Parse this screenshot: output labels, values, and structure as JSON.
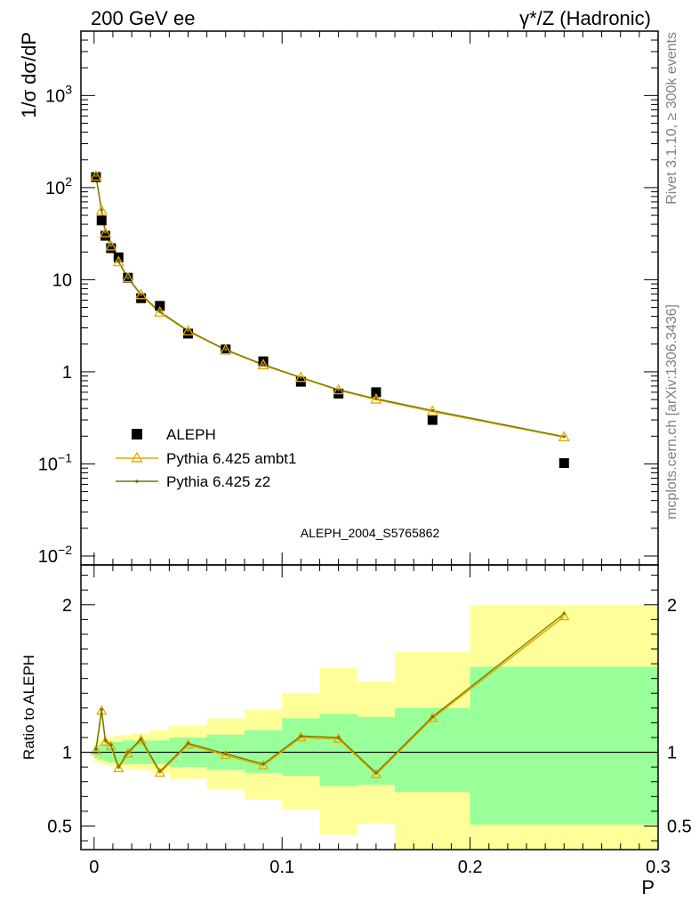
{
  "header": {
    "energy_label": "200 GeV ee",
    "process_label": "γ*/Z (Hadronic)"
  },
  "side_labels": {
    "rivet": "Rivet 3.1.10, ≥ 300k events",
    "mcplots": "mcplots.cern.ch [arXiv:1306.3436]"
  },
  "colors": {
    "data": "#000000",
    "ambt1": "#e8a800",
    "z2": "#6b7a00",
    "band_inner": "#99ff99",
    "band_outer": "#ffff99",
    "analysis_text": "#a0a0a0"
  },
  "chart_data": [
    {
      "type": "scatter",
      "ylabel": "1/σ dσ/dP",
      "yscale": "log",
      "ylim": [
        0.008,
        5000
      ],
      "xlim": [
        -0.007,
        0.3
      ],
      "yticks": [
        {
          "v": 0.01,
          "base": "10",
          "exp": "−2"
        },
        {
          "v": 0.1,
          "base": "10",
          "exp": "−1"
        },
        {
          "v": 1,
          "base": "1",
          "exp": ""
        },
        {
          "v": 10,
          "base": "10",
          "exp": ""
        },
        {
          "v": 100,
          "base": "10",
          "exp": "2"
        },
        {
          "v": 1000,
          "base": "10",
          "exp": "3"
        }
      ],
      "annotation": "ALEPH_2004_S5765862",
      "legend": {
        "placement": "lower-left",
        "entries": [
          {
            "label": "ALEPH"
          },
          {
            "label": "Pythia 6.425 ambt1"
          },
          {
            "label": "Pythia 6.425 z2"
          }
        ]
      },
      "series": [
        {
          "name": "ALEPH",
          "x": [
            0.001,
            0.004,
            0.006,
            0.009,
            0.013,
            0.018,
            0.025,
            0.035,
            0.05,
            0.07,
            0.09,
            0.11,
            0.13,
            0.15,
            0.18,
            0.25
          ],
          "y": [
            130,
            44,
            30,
            22,
            17.5,
            10.5,
            6.3,
            5.2,
            2.6,
            1.75,
            1.3,
            0.78,
            0.58,
            0.6,
            0.3,
            0.102
          ]
        },
        {
          "name": "Pythia 6.425 ambt1",
          "x": [
            0.001,
            0.004,
            0.006,
            0.009,
            0.013,
            0.018,
            0.025,
            0.035,
            0.05,
            0.07,
            0.09,
            0.11,
            0.13,
            0.15,
            0.18,
            0.25
          ],
          "y": [
            132,
            56,
            32,
            23,
            15.5,
            10.4,
            6.8,
            4.4,
            2.75,
            1.72,
            1.18,
            0.86,
            0.63,
            0.5,
            0.37,
            0.195
          ]
        },
        {
          "name": "Pythia 6.425 z2",
          "x": [
            0.001,
            0.004,
            0.006,
            0.009,
            0.013,
            0.018,
            0.025,
            0.035,
            0.05,
            0.07,
            0.09,
            0.11,
            0.13,
            0.15,
            0.18,
            0.25
          ],
          "y": [
            134,
            57,
            33,
            23.5,
            15.8,
            10.5,
            6.9,
            4.5,
            2.8,
            1.74,
            1.2,
            0.87,
            0.64,
            0.51,
            0.38,
            0.198
          ]
        }
      ]
    },
    {
      "type": "line",
      "ylabel": "Ratio to ALEPH",
      "xlabel": "P",
      "ylim": [
        0.34,
        2.27
      ],
      "xlim": [
        -0.007,
        0.3
      ],
      "yticks": [
        0.5,
        1,
        2
      ],
      "xticks": [
        {
          "v": 0,
          "label": "0"
        },
        {
          "v": 0.1,
          "label": "0.1"
        },
        {
          "v": 0.2,
          "label": "0.2"
        },
        {
          "v": 0.3,
          "label": "0.3"
        }
      ],
      "reference_line": 1,
      "bands": {
        "edges": [
          0,
          0.002,
          0.005,
          0.007,
          0.01,
          0.015,
          0.02,
          0.03,
          0.04,
          0.06,
          0.08,
          0.1,
          0.12,
          0.14,
          0.16,
          0.2,
          0.3
        ],
        "inner_lo": [
          0.96,
          0.95,
          0.94,
          0.93,
          0.93,
          0.92,
          0.92,
          0.92,
          0.9,
          0.88,
          0.86,
          0.84,
          0.77,
          0.78,
          0.73,
          0.51
        ],
        "inner_hi": [
          1.04,
          1.05,
          1.06,
          1.07,
          1.07,
          1.08,
          1.08,
          1.08,
          1.1,
          1.12,
          1.15,
          1.23,
          1.26,
          1.24,
          1.3,
          1.58
        ],
        "outer_lo": [
          0.93,
          0.92,
          0.91,
          0.91,
          0.9,
          0.89,
          0.88,
          0.86,
          0.82,
          0.75,
          0.68,
          0.61,
          0.44,
          0.52,
          0.33,
          0.33
        ],
        "outer_hi": [
          1.07,
          1.08,
          1.09,
          1.1,
          1.11,
          1.12,
          1.13,
          1.15,
          1.18,
          1.23,
          1.29,
          1.4,
          1.57,
          1.48,
          1.68,
          2.0
        ]
      },
      "series": [
        {
          "name": "Pythia 6.425 ambt1",
          "x": [
            0.001,
            0.004,
            0.006,
            0.009,
            0.013,
            0.018,
            0.025,
            0.035,
            0.05,
            0.07,
            0.09,
            0.11,
            0.13,
            0.15,
            0.18,
            0.25
          ],
          "y": [
            1.01,
            1.28,
            1.07,
            1.04,
            0.89,
            0.99,
            1.08,
            0.86,
            1.05,
            0.98,
            0.91,
            1.1,
            1.09,
            0.85,
            1.23,
            1.92
          ]
        },
        {
          "name": "Pythia 6.425 z2",
          "x": [
            0.001,
            0.004,
            0.006,
            0.009,
            0.013,
            0.018,
            0.025,
            0.035,
            0.05,
            0.07,
            0.09,
            0.11,
            0.13,
            0.15,
            0.18,
            0.25
          ],
          "y": [
            1.02,
            1.29,
            1.08,
            1.05,
            0.9,
            1.0,
            1.09,
            0.87,
            1.06,
            0.99,
            0.92,
            1.11,
            1.1,
            0.86,
            1.24,
            1.94
          ]
        }
      ]
    }
  ]
}
